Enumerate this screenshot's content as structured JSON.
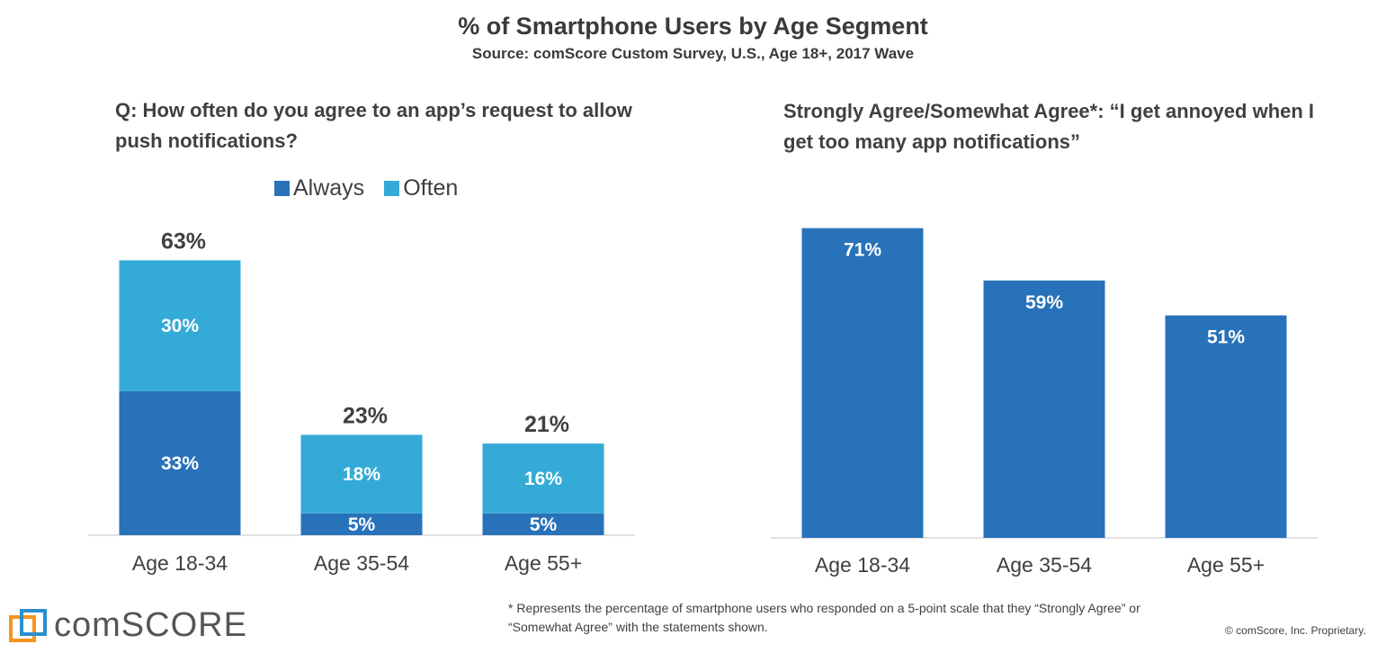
{
  "header": {
    "title": "% of Smartphone Users by Age Segment",
    "subtitle": "Source: comScore Custom Survey, U.S., Age 18+, 2017 Wave"
  },
  "colors": {
    "always": "#2872ba",
    "often": "#34aad7",
    "bar": "#2872ba",
    "axis": "#d9d9d9"
  },
  "chart_data": [
    {
      "type": "bar",
      "stacked": true,
      "title": "Q: How often do you agree to an app’s request to allow push notifications?",
      "categories": [
        "Age 18-34",
        "Age 35-54",
        "Age 55+"
      ],
      "series": [
        {
          "name": "Always",
          "values": [
            33,
            5,
            5
          ],
          "labels": [
            "33%",
            "5%",
            "5%"
          ]
        },
        {
          "name": "Often",
          "values": [
            30,
            18,
            16
          ],
          "labels": [
            "30%",
            "18%",
            "16%"
          ]
        }
      ],
      "totals": [
        63,
        23,
        21
      ],
      "total_labels": [
        "63%",
        "23%",
        "21%"
      ],
      "legend": "top",
      "grid": false
    },
    {
      "type": "bar",
      "title": "Strongly Agree/Somewhat Agree*: “I get annoyed when I get too many app notifications”",
      "categories": [
        "Age 18-34",
        "Age 35-54",
        "Age 55+"
      ],
      "values": [
        71,
        59,
        51
      ],
      "labels": [
        "71%",
        "59%",
        "51%"
      ],
      "grid": false
    }
  ],
  "footnote": "* Represents the percentage of smartphone users who responded on a 5-point scale that they “Strongly Agree” or “Somewhat Agree” with the statements shown.",
  "branding": {
    "logo_text": "comSCORE",
    "copyright": "© comScore, Inc. Proprietary."
  }
}
